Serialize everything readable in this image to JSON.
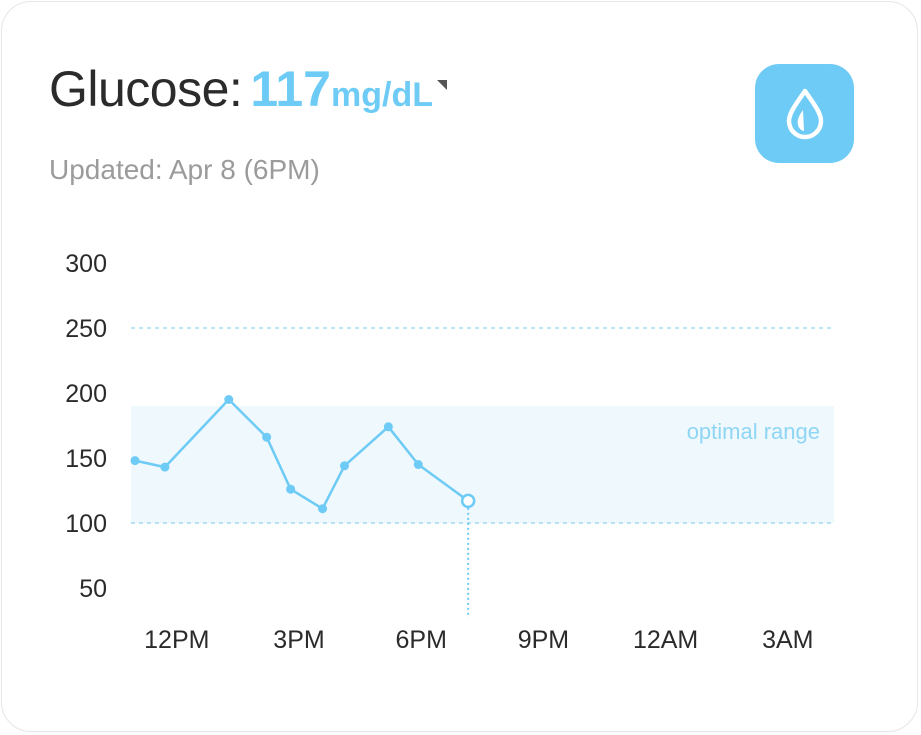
{
  "header": {
    "title_label": "Glucose:",
    "value": "117",
    "unit": "mg/dL",
    "updated": "Updated: Apr 8 (6PM)",
    "icon": "drop-icon"
  },
  "colors": {
    "accent": "#6ecbf5",
    "range_fill": "#eef8fd",
    "text": "#2b2b2b",
    "muted": "#9b9b9b"
  },
  "chart_data": {
    "type": "line",
    "title": "",
    "xlabel": "",
    "ylabel": "",
    "ylim": [
      50,
      300
    ],
    "yticks": [
      "300",
      "250",
      "200",
      "150",
      "100",
      "50"
    ],
    "x_ticks": [
      "12PM",
      "3PM",
      "6PM",
      "9PM",
      "12AM",
      "3AM"
    ],
    "xlim": [
      10,
      29
    ],
    "grid": false,
    "reference_lines": [
      250,
      100
    ],
    "optimal_range": {
      "label": "optimal range",
      "low": 100,
      "high": 190
    },
    "series": [
      {
        "x": [
          10,
          10.75,
          12.35,
          13.3,
          13.9,
          14.7,
          15.25,
          16.35,
          17.1,
          18.35
        ],
        "y": [
          148,
          143,
          195,
          166,
          126,
          111,
          144,
          174,
          145,
          117
        ]
      }
    ],
    "current_point": {
      "x": 18.35,
      "y": 117
    }
  }
}
